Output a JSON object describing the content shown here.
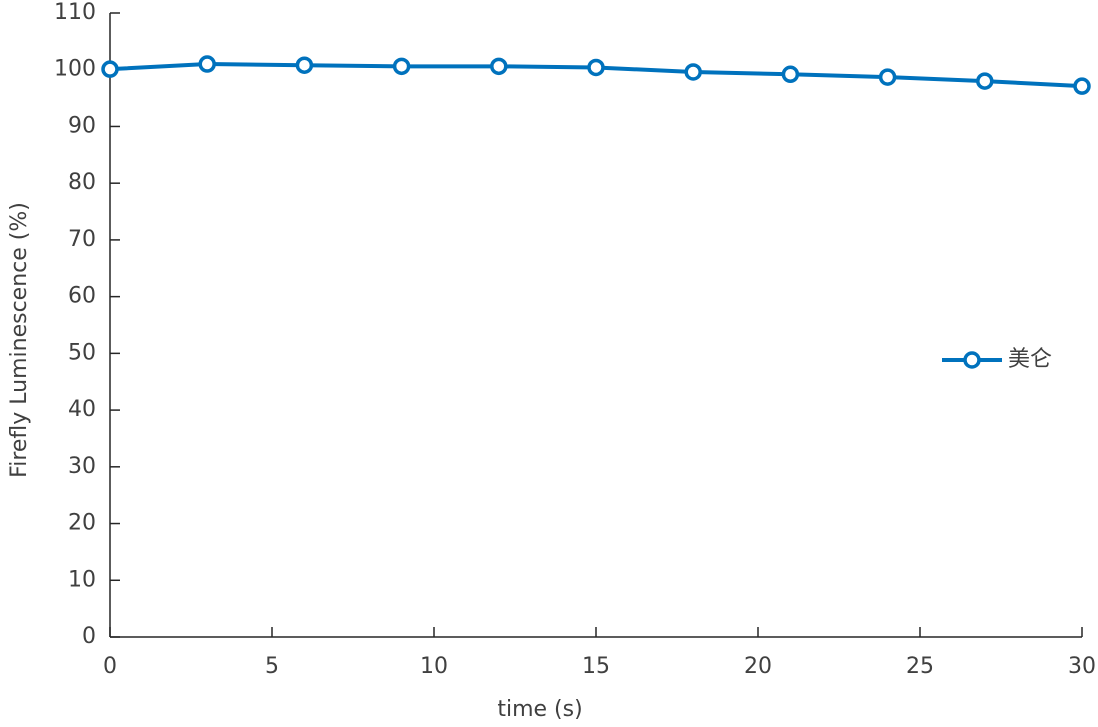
{
  "chart_data": {
    "type": "line",
    "x_label": "time (s)",
    "y_label": "Firefly Luminescence (%)",
    "x": [
      0,
      3,
      6,
      9,
      12,
      15,
      18,
      21,
      24,
      27,
      30
    ],
    "series": [
      {
        "name": "美仑",
        "color": "#0072bd",
        "values": [
          100.1,
          101.0,
          100.8,
          100.6,
          100.6,
          100.4,
          99.6,
          99.2,
          98.7,
          98.0,
          97.1
        ]
      }
    ],
    "xlim": [
      0,
      30
    ],
    "xticks": [
      0,
      5,
      10,
      15,
      20,
      25,
      30
    ],
    "ylim": [
      0,
      110
    ],
    "yticks": [
      0,
      10,
      20,
      30,
      40,
      50,
      60,
      70,
      80,
      90,
      100,
      110
    ],
    "legend": "right",
    "grid": false
  }
}
